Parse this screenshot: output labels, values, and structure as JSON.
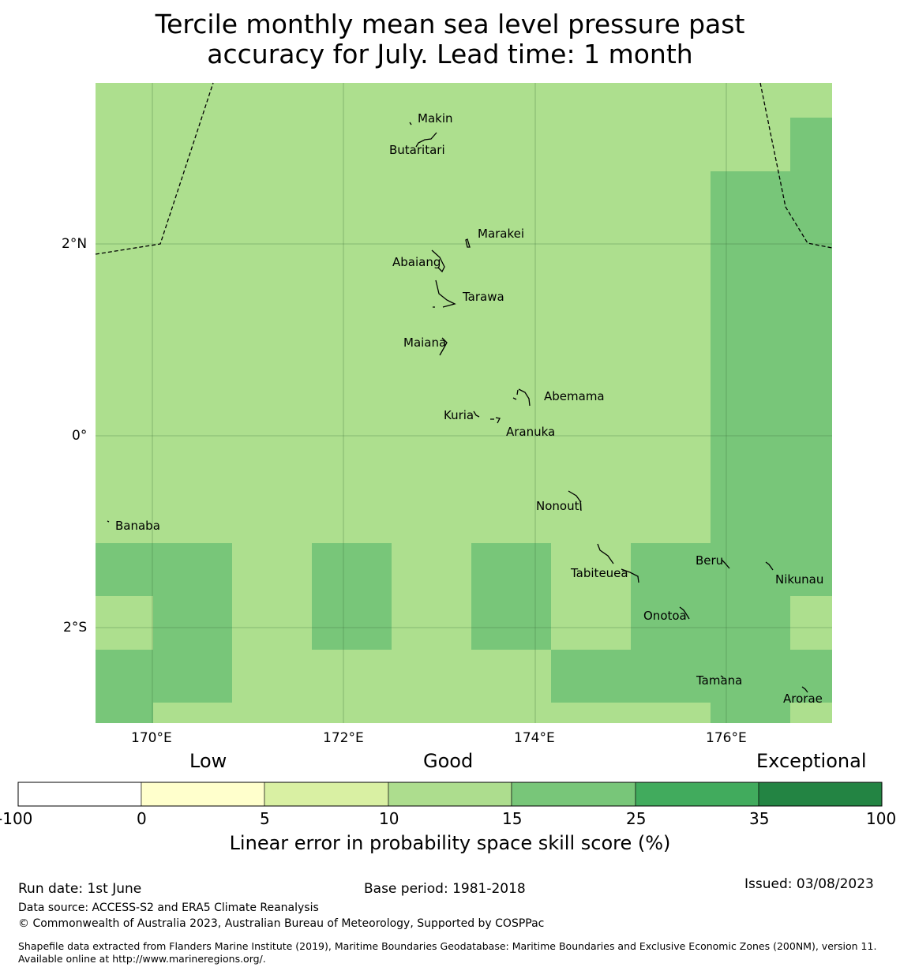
{
  "title": {
    "line1": "Tercile monthly mean sea level pressure past",
    "line2": "accuracy for July. Lead time: 1 month"
  },
  "map": {
    "lon_labels": [
      "170°E",
      "172°E",
      "174°E",
      "176°E"
    ],
    "lat_labels": [
      "2°N",
      "0°",
      "2°S"
    ],
    "islands": [
      "Makin",
      "Butaritari",
      "Marakei",
      "Abaiang",
      "Tarawa",
      "Maiana",
      "Abemama",
      "Kuria",
      "Aranuka",
      "Nonouti",
      "Banaba",
      "Tabiteuea",
      "Beru",
      "Nikunau",
      "Onotoa",
      "Tamana",
      "Arorae"
    ],
    "colors": {
      "good_10_15": "#addf8e",
      "good_15_25": "#78c679",
      "boundary": "#000000"
    }
  },
  "colorbar": {
    "categories": [
      "Low",
      "Good",
      "Exceptional"
    ],
    "ticks": [
      "-100",
      "0",
      "5",
      "10",
      "15",
      "25",
      "35",
      "100"
    ],
    "colors": [
      "#ffffff",
      "#ffffcc",
      "#d9f0a3",
      "#addd8e",
      "#78c679",
      "#41ab5d",
      "#238443"
    ],
    "label": "Linear error in probability space skill score (%)"
  },
  "footer": {
    "run_date": "Run date: 1st June",
    "base_period": "Base period: 1981-2018",
    "issued": "Issued: 03/08/2023",
    "data_source": "Data source: ACCESS-S2 and ERA5 Climate Reanalysis",
    "copyright": "© Commonwealth of Australia 2023, Australian Bureau of Meteorology, Supported by COSPPac",
    "shapefile": "Shapefile data extracted from Flanders Marine Institute (2019), Maritime Boundaries Geodatabase: Maritime Boundaries and Exclusive Economic Zones (200NM), version 11. Available online at http://www.marineregions.org/."
  }
}
